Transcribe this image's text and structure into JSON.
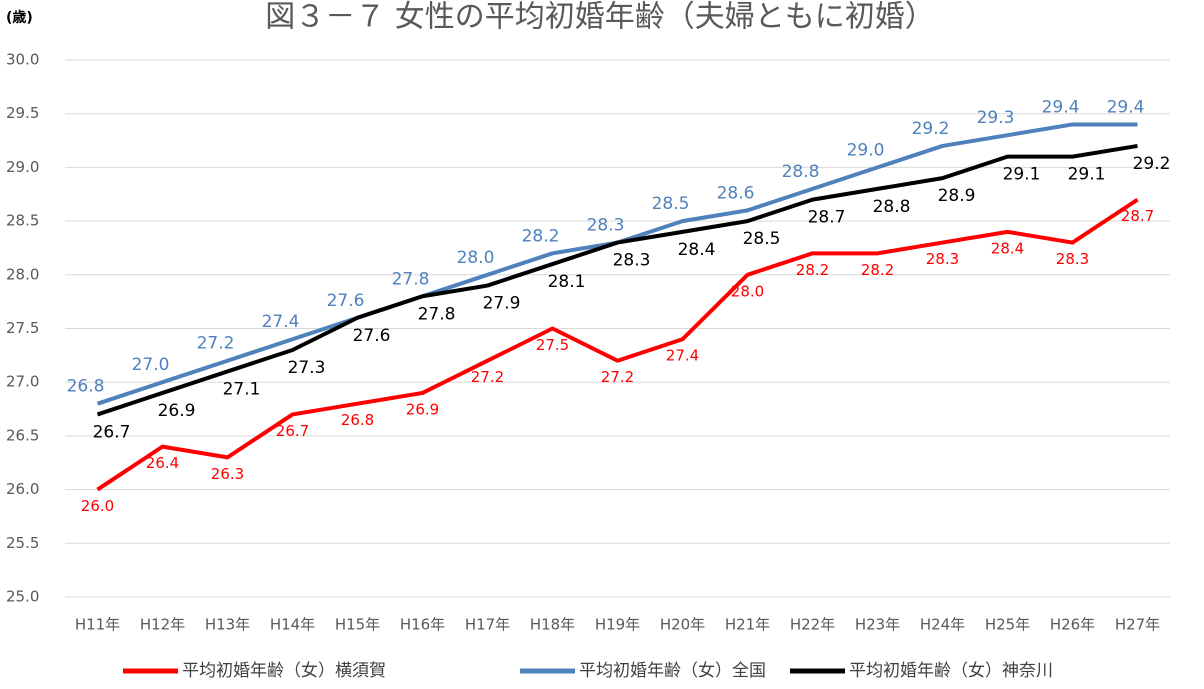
{
  "chart_data": {
    "type": "line",
    "title": "図３－７ 女性の平均初婚年齢（夫婦ともに初婚）",
    "y_label": "(歳)",
    "categories": [
      "H11年",
      "H12年",
      "H13年",
      "H14年",
      "H15年",
      "H16年",
      "H17年",
      "H18年",
      "H19年",
      "H20年",
      "H21年",
      "H22年",
      "H23年",
      "H24年",
      "H25年",
      "H26年",
      "H27年"
    ],
    "series": [
      {
        "name": "平均初婚年齢（女）横須賀",
        "color": "#ff0000",
        "values": [
          26.0,
          26.4,
          26.3,
          26.7,
          26.8,
          26.9,
          27.2,
          27.5,
          27.2,
          27.4,
          28.0,
          28.2,
          28.2,
          28.3,
          28.4,
          28.3,
          28.7
        ],
        "value_labels": [
          "26.0",
          "26.4",
          "26.3",
          "26.7",
          "26.8",
          "26.9",
          "27.2",
          "27.5",
          "27.2",
          "27.4",
          "28.0",
          "28.2",
          "28.2",
          "28.3",
          "28.4",
          "28.3",
          "28.7"
        ]
      },
      {
        "name": "平均初婚年齢（女）全国",
        "color": "#4f81bd",
        "values": [
          26.8,
          27.0,
          27.2,
          27.4,
          27.6,
          27.8,
          28.0,
          28.2,
          28.3,
          28.5,
          28.6,
          28.8,
          29.0,
          29.2,
          29.3,
          29.4,
          29.4
        ],
        "value_labels": [
          "26.8",
          "27.0",
          "27.2",
          "27.4",
          "27.6",
          "27.8",
          "28.0",
          "28.2",
          "28.3",
          "28.5",
          "28.6",
          "28.8",
          "29.0",
          "29.2",
          "29.3",
          "29.4",
          "29.4"
        ]
      },
      {
        "name": "平均初婚年齢（女）神奈川",
        "color": "#000000",
        "values": [
          26.7,
          26.9,
          27.1,
          27.3,
          27.6,
          27.8,
          27.9,
          28.1,
          28.3,
          28.4,
          28.5,
          28.7,
          28.8,
          28.9,
          29.1,
          29.1,
          29.2
        ],
        "value_labels": [
          "26.7",
          "26.9",
          "27.1",
          "27.3",
          "27.6",
          "27.8",
          "27.9",
          "28.1",
          "28.3",
          "28.4",
          "28.5",
          "28.7",
          "28.8",
          "28.9",
          "29.1",
          "29.1",
          "29.2"
        ]
      }
    ],
    "ylim": [
      25,
      30
    ],
    "yticks": [
      {
        "value": 25,
        "label": "25.0"
      },
      25.5,
      {
        "value": 26,
        "label": "26.0"
      },
      26.5,
      {
        "value": 27,
        "label": "27.0"
      },
      27.5,
      {
        "value": 28,
        "label": "28.0"
      },
      28.5,
      {
        "value": 29,
        "label": "29.0"
      },
      29.5,
      {
        "value": 30,
        "label": "30.0"
      }
    ],
    "grid": true,
    "legend": "bottom"
  }
}
